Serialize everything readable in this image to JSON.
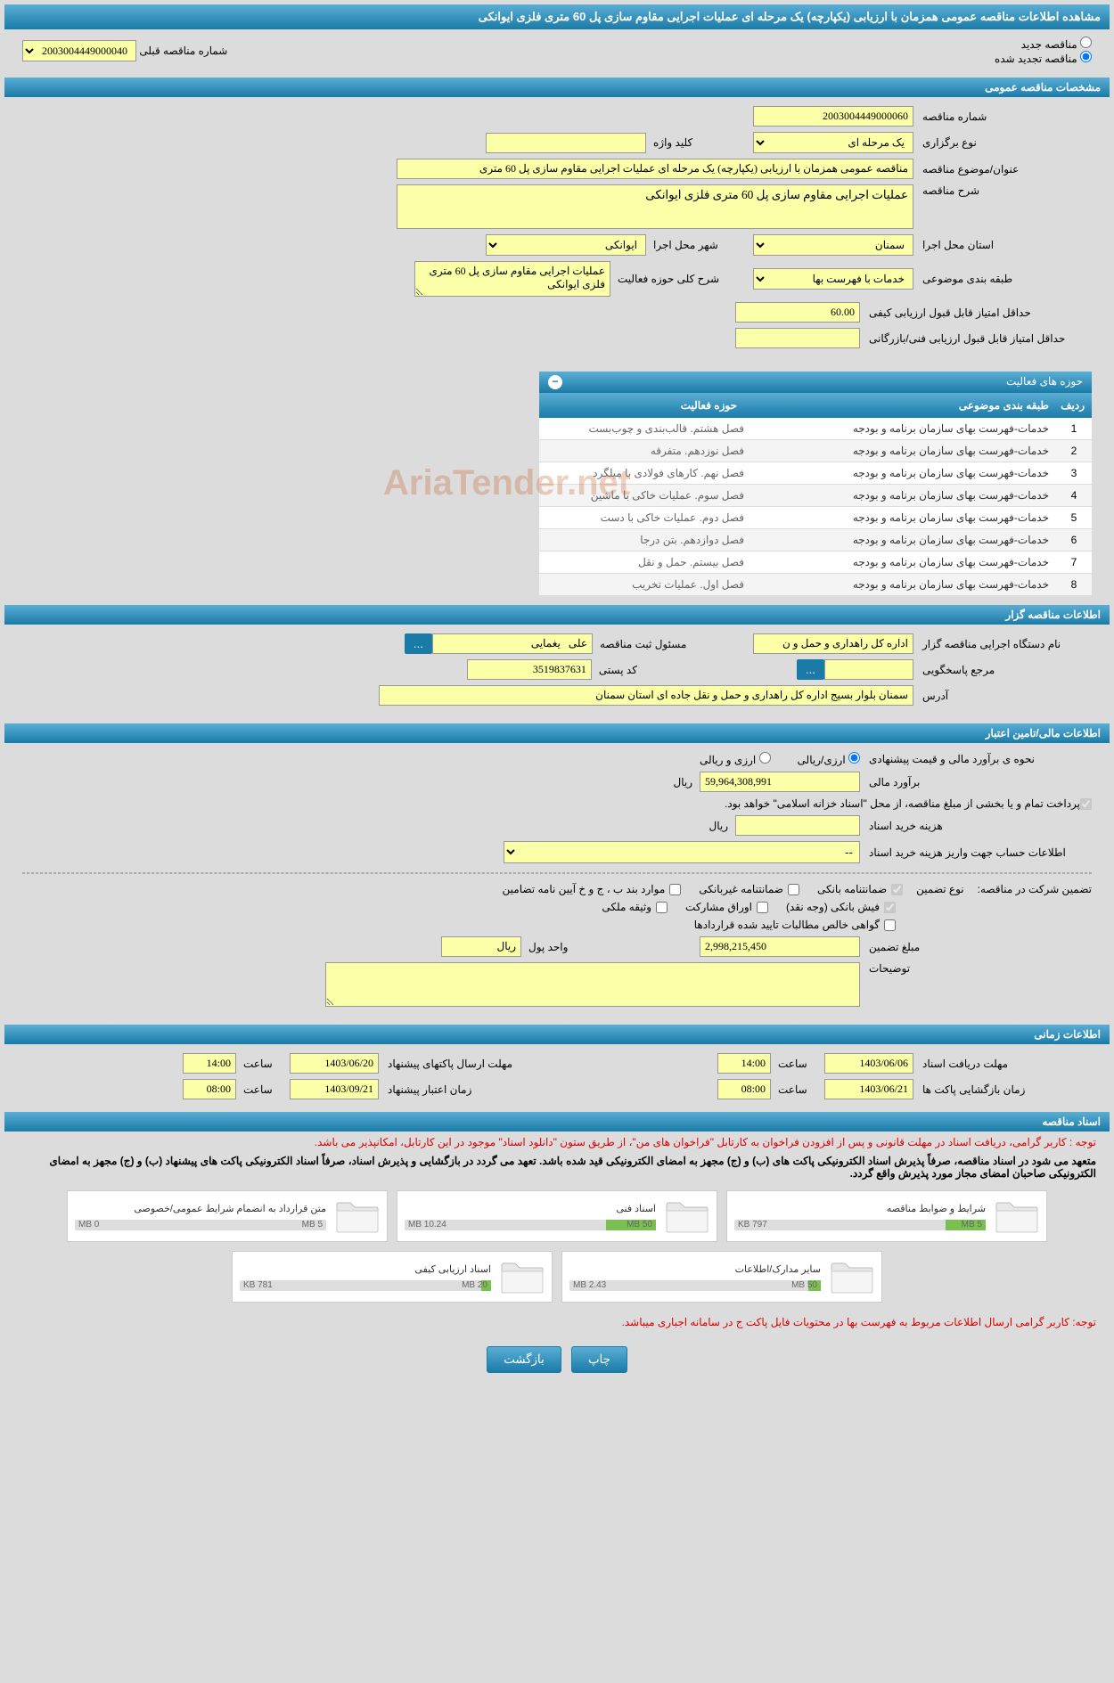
{
  "header": {
    "title": "مشاهده اطلاعات مناقصه عمومی همزمان با ارزیابی (یکپارچه) یک مرحله ای عملیات اجرایی مقاوم سازی پل 60 متری فلزی ایوانکی"
  },
  "tender_mode": {
    "new_label": "مناقصه جدید",
    "renewed_label": "مناقصه تجدید شده",
    "prev_label": "شماره مناقصه قبلی",
    "prev_value": "2003004449000040"
  },
  "sections": {
    "general": "مشخصات مناقصه عمومی",
    "activity": "حوزه های فعالیت",
    "organizer": "اطلاعات مناقصه گزار",
    "financial": "اطلاعات مالی/تامین اعتبار",
    "timing": "اطلاعات زمانی",
    "docs": "اسناد مناقصه"
  },
  "general": {
    "tender_no_label": "شماره مناقصه",
    "tender_no": "2003004449000060",
    "type_label": "نوع برگزاری",
    "type": "یک مرحله ای",
    "keyword_label": "کلید واژه",
    "keyword": "",
    "title_label": "عنوان/موضوع مناقصه",
    "title": "مناقصه عمومی همزمان با ارزیابی (یکپارچه) یک مرحله ای عملیات اجرایی مقاوم سازی پل 60 متری",
    "desc_label": "شرح مناقصه",
    "desc": "عملیات اجرایی مقاوم سازی پل 60 متری فلزی ایوانکی",
    "province_label": "استان محل اجرا",
    "province": "سمنان",
    "city_label": "شهر محل اجرا",
    "city": "ایوانکی",
    "category_label": "طبقه بندی موضوعی",
    "category": "خدمات با فهرست بها",
    "scope_label": "شرح کلی حوزه فعالیت",
    "scope": "عملیات اجرایی مقاوم سازی پل 60 متری فلزی ایوانکی",
    "min_quality_label": "حداقل امتیاز قابل قبول ارزیابی کیفی",
    "min_quality": "60.00",
    "min_tech_label": "حداقل امتیاز قابل قبول ارزیابی فنی/بازرگانی",
    "min_tech": ""
  },
  "activity_table": {
    "columns": {
      "row": "ردیف",
      "category": "طبقه بندی موضوعی",
      "scope": "حوزه فعالیت"
    },
    "rows": [
      {
        "n": "1",
        "cat": "خدمات-فهرست بهای سازمان برنامه و بودجه",
        "act": "فصل هشتم. قالب‌بندی و چوب‌بست"
      },
      {
        "n": "2",
        "cat": "خدمات-فهرست بهای سازمان برنامه و بودجه",
        "act": "فصل نوزدهم. متفرقه"
      },
      {
        "n": "3",
        "cat": "خدمات-فهرست بهای سازمان برنامه و بودجه",
        "act": "فصل نهم. کارهای فولادی با میلگرد"
      },
      {
        "n": "4",
        "cat": "خدمات-فهرست بهای سازمان برنامه و بودجه",
        "act": "فصل سوم. عملیات خاکی با ماشین"
      },
      {
        "n": "5",
        "cat": "خدمات-فهرست بهای سازمان برنامه و بودجه",
        "act": "فصل دوم. عملیات خاکی با دست"
      },
      {
        "n": "6",
        "cat": "خدمات-فهرست بهای سازمان برنامه و بودجه",
        "act": "فصل دوازدهم. بتن درجا"
      },
      {
        "n": "7",
        "cat": "خدمات-فهرست بهای سازمان برنامه و بودجه",
        "act": "فصل بیستم. حمل و نقل"
      },
      {
        "n": "8",
        "cat": "خدمات-فهرست بهای سازمان برنامه و بودجه",
        "act": "فصل اول. عملیات تخریب"
      }
    ]
  },
  "organizer": {
    "org_label": "نام دستگاه اجرایی مناقصه گزار",
    "org": "اداره کل راهداری و حمل و ن",
    "responsible_label": "مسئول ثبت مناقصه",
    "responsible": "علی   یغمایی",
    "response_label": "مرجع پاسخگویی",
    "response": "",
    "postal_label": "کد پستی",
    "postal": "3519837631",
    "address_label": "آدرس",
    "address": "سمنان بلوار بسیج اداره کل راهداری و حمل و نقل جاده ای استان سمنان"
  },
  "financial": {
    "estimate_method_label": "نحوه ی برآورد مالی و قیمت پیشنهادی",
    "option_rial": "ارزی/ریالی",
    "option_both": "ارزی و ریالی",
    "estimate_label": "برآورد مالی",
    "estimate": "59,964,308,991",
    "currency": "ریال",
    "payment_note": "پرداخت تمام و یا بخشی از مبلغ مناقصه، از محل \"اسناد خزانه اسلامی\" خواهد بود.",
    "doc_cost_label": "هزینه خرید اسناد",
    "doc_cost": "",
    "account_label": "اطلاعات حساب جهت واریز هزینه خرید اسناد",
    "account": "--",
    "guarantee_label": "تضمین شرکت در مناقصه:",
    "guarantee_type_label": "نوع تضمین",
    "g1": "ضمانتنامه بانکی",
    "g2": "ضمانتنامه غیربانکی",
    "g3": "موارد بند ب ، ج و خ آیین نامه تضامین",
    "g4": "فیش بانکی (وجه نقد)",
    "g5": "اوراق مشارکت",
    "g6": "وثیقه ملکی",
    "g7": "گواهی خالص مطالبات تایید شده قراردادها",
    "guarantee_amount_label": "مبلغ تضمین",
    "guarantee_amount": "2,998,215,450",
    "unit_label": "واحد پول",
    "unit": "ریال",
    "remarks_label": "توضیحات",
    "remarks": ""
  },
  "timing": {
    "receive_label": "مهلت دریافت اسناد",
    "receive_date": "1403/06/06",
    "receive_time": "14:00",
    "submit_label": "مهلت ارسال پاکتهای پیشنهاد",
    "submit_date": "1403/06/20",
    "submit_time": "14:00",
    "open_label": "زمان بازگشایی پاکت ها",
    "open_date": "1403/06/21",
    "open_time": "08:00",
    "validity_label": "زمان اعتبار پیشنهاد",
    "validity_date": "1403/09/21",
    "validity_time": "08:00",
    "time_label": "ساعت"
  },
  "docs": {
    "note1": "توجه : کاربر گرامی، دریافت اسناد در مهلت قانونی و پس از افزودن فراخوان به کارتابل \"فراخوان های من\"، از طریق ستون \"دانلود اسناد\" موجود در این کارتابل، امکانپذیر می باشد.",
    "note2": "متعهد می شود در اسناد مناقصه، صرفاً پذیرش اسناد الکترونیکی پاکت های (ب) و (ج) مجهز به امضای الکترونیکی قید شده باشد. تعهد می گردد در بازگشایی و پذیرش اسناد، صرفاً اسناد الکترونیکی پاکت های پیشنهاد (ب) و (ج) مجهز به امضای الکترونیکی صاحبان امضای مجاز مورد پذیرش واقع گردد.",
    "files": [
      {
        "title": "شرایط و ضوابط مناقصه",
        "used": "797 KB",
        "total": "5 MB",
        "pct": 16
      },
      {
        "title": "اسناد فنی",
        "used": "10.24 MB",
        "total": "50 MB",
        "pct": 20
      },
      {
        "title": "متن قرارداد به انضمام شرایط عمومی/خصوصی",
        "used": "0 MB",
        "total": "5 MB",
        "pct": 0
      },
      {
        "title": "سایر مدارک/اطلاعات",
        "used": "2.43 MB",
        "total": "50 MB",
        "pct": 5
      },
      {
        "title": "اسناد ارزیابی کیفی",
        "used": "781 KB",
        "total": "20 MB",
        "pct": 4
      }
    ],
    "note3": "توجه: کاربر گرامی ارسال اطلاعات مربوط به فهرست بها در محتویات فایل پاکت ج در سامانه اجباری میباشد."
  },
  "buttons": {
    "print": "چاپ",
    "back": "بازگشت"
  },
  "colors": {
    "primary": "#1a7ba8",
    "yellow": "#fbffa8",
    "bg": "#dcdcdc"
  }
}
